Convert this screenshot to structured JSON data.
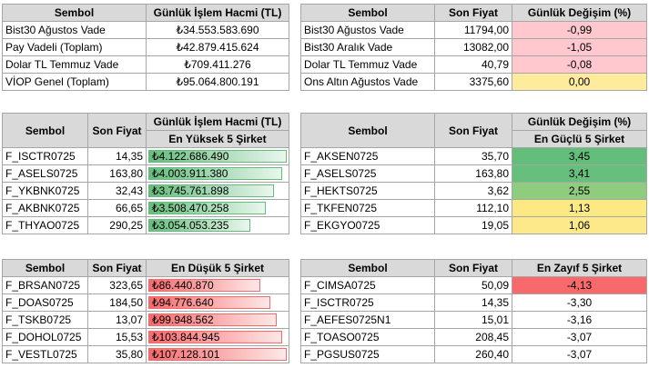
{
  "top_left": {
    "headers": [
      "Sembol",
      "Günlük İşlem Hacmi (TL)"
    ],
    "rows": [
      [
        "Bist30 Ağustos Vade",
        "₺34.553.583.690"
      ],
      [
        "Pay Vadeli (Toplam)",
        "₺42.879.415.624"
      ],
      [
        "Dolar TL Temmuz Vade",
        "₺709.411.276"
      ],
      [
        "VİOP Genel (Toplam)",
        "₺95.064.800.191"
      ]
    ]
  },
  "top_right": {
    "headers": [
      "Sembol",
      "Son Fiyat",
      "Günlük Değişim (%)"
    ],
    "rows": [
      {
        "s": "Bist30 Ağustos Vade",
        "p": "11794,00",
        "c": "-0,99",
        "bg": "#ffc7ce"
      },
      {
        "s": "Bist30 Aralık Vade",
        "p": "13082,00",
        "c": "-1,05",
        "bg": "#ffc7ce"
      },
      {
        "s": "Dolar TL Temmuz Vade",
        "p": "40,79",
        "c": "-0,08",
        "bg": "#ffc7ce"
      },
      {
        "s": "Ons Altın Ağustos Vade",
        "p": "3375,60",
        "c": "0,00",
        "bg": "#ffeb9c"
      }
    ]
  },
  "top5_volume": {
    "headers": [
      "Sembol",
      "Son Fiyat",
      "Günlük İşlem Hacmi (TL)"
    ],
    "subheader": "En Yüksek 5 Şirket",
    "rows": [
      {
        "s": "F_ISCTR0725",
        "p": "14,35",
        "v": "₺4.122.686.490",
        "f": 1.0
      },
      {
        "s": "F_ASELS0725",
        "p": "163,80",
        "v": "₺4.003.911.380",
        "f": 0.97
      },
      {
        "s": "F_YKBNK0725",
        "p": "32,43",
        "v": "₺3.745.761.898",
        "f": 0.91
      },
      {
        "s": "F_AKBNK0725",
        "p": "66,65",
        "v": "₺3.508.470.258",
        "f": 0.85
      },
      {
        "s": "F_THYAO0725",
        "p": "290,25",
        "v": "₺3.054.053.235",
        "f": 0.74
      }
    ]
  },
  "top5_gain": {
    "headers": [
      "Sembol",
      "Son Fiyat",
      "Günlük Değişim (%)"
    ],
    "subheader": "En Güçlü 5 Şirket",
    "rows": [
      {
        "s": "F_AKSEN0725",
        "p": "35,70",
        "c": "3,45",
        "bg": "#63be7b"
      },
      {
        "s": "F_ASELS0725",
        "p": "163,80",
        "c": "3,41",
        "bg": "#66bf7c"
      },
      {
        "s": "F_HEKTS0725",
        "p": "3,62",
        "c": "2,55",
        "bg": "#8fcc7e"
      },
      {
        "s": "F_TKFEN0725",
        "p": "112,10",
        "c": "1,13",
        "bg": "#fde983"
      },
      {
        "s": "F_EKGYO0725",
        "p": "19,05",
        "c": "1,06",
        "bg": "#fee98a"
      }
    ]
  },
  "bottom5_volume": {
    "headers": [
      "Sembol",
      "Son Fiyat",
      "En Düşük 5 Şirket"
    ],
    "rows": [
      {
        "s": "F_BRSAN0725",
        "p": "323,65",
        "v": "₺86.440.870",
        "f": 0.81
      },
      {
        "s": "F_DOAS0725",
        "p": "184,50",
        "v": "₺94.776.640",
        "f": 0.88
      },
      {
        "s": "F_TSKB0725",
        "p": "13,07",
        "v": "₺99.948.562",
        "f": 0.93
      },
      {
        "s": "F_DOHOL0725",
        "p": "15,53",
        "v": "₺103.844.945",
        "f": 0.97
      },
      {
        "s": "F_VESTL0725",
        "p": "35,80",
        "v": "₺107.128.101",
        "f": 1.0
      }
    ]
  },
  "bottom5_loss": {
    "headers": [
      "Sembol",
      "Son Fiyat",
      "En Zayıf 5 Şirket"
    ],
    "rows": [
      {
        "s": "F_CIMSA0725",
        "p": "50,09",
        "c": "-4,13",
        "bg": "#f8696b"
      },
      {
        "s": "F_ISCTR0725",
        "p": "14,35",
        "c": "-3,30",
        "bg": "#ffffff"
      },
      {
        "s": "F_AEFES0725N1",
        "p": "15,01",
        "c": "-3,16",
        "bg": "#ffffff"
      },
      {
        "s": "F_TOASO0725",
        "p": "208,45",
        "c": "-3,07",
        "bg": "#ffffff"
      },
      {
        "s": "F_PGSUS0725",
        "p": "260,40",
        "c": "-3,07",
        "bg": "#ffffff"
      }
    ]
  }
}
